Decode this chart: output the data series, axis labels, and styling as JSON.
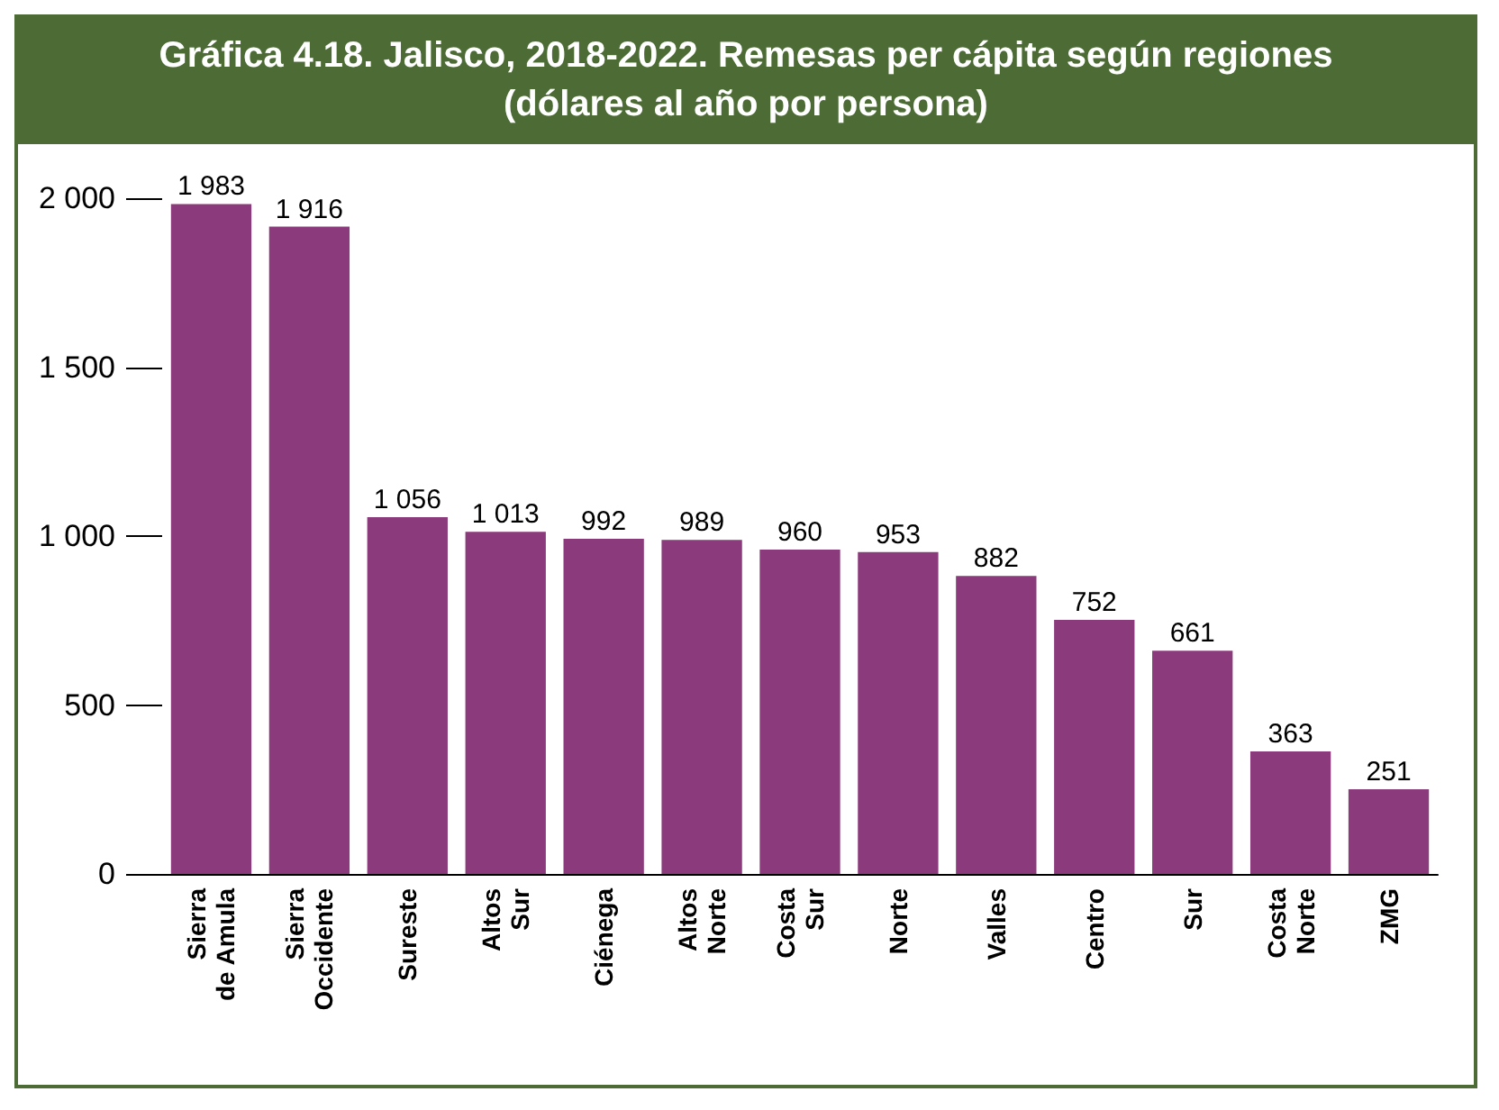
{
  "chart_data": {
    "type": "bar",
    "title": "Gráfica 4.18. Jalisco, 2018-2022. Remesas per cápita según regiones\n(dólares al año por persona)",
    "categories": [
      "Sierra\nde Amula",
      "Sierra\nOccidente",
      "Sureste",
      "Altos\nSur",
      "Ciénega",
      "Altos\nNorte",
      "Costa\nSur",
      "Norte",
      "Valles",
      "Centro",
      "Sur",
      "Costa\nNorte",
      "ZMG"
    ],
    "values": [
      1983,
      1916,
      1056,
      1013,
      992,
      989,
      960,
      953,
      882,
      752,
      661,
      363,
      251
    ],
    "value_labels": [
      "1 983",
      "1 916",
      "1 056",
      "1 013",
      "992",
      "989",
      "960",
      "953",
      "882",
      "752",
      "661",
      "363",
      "251"
    ],
    "color": "#8b3a7b",
    "ylim": [
      0,
      2000
    ],
    "yticks": [
      0,
      500,
      {
        "value": 1000,
        "label": "1 000"
      },
      {
        "value": 1500,
        "label": "1 500"
      },
      {
        "value": 2000,
        "label": "2 000"
      }
    ],
    "grid": false
  }
}
